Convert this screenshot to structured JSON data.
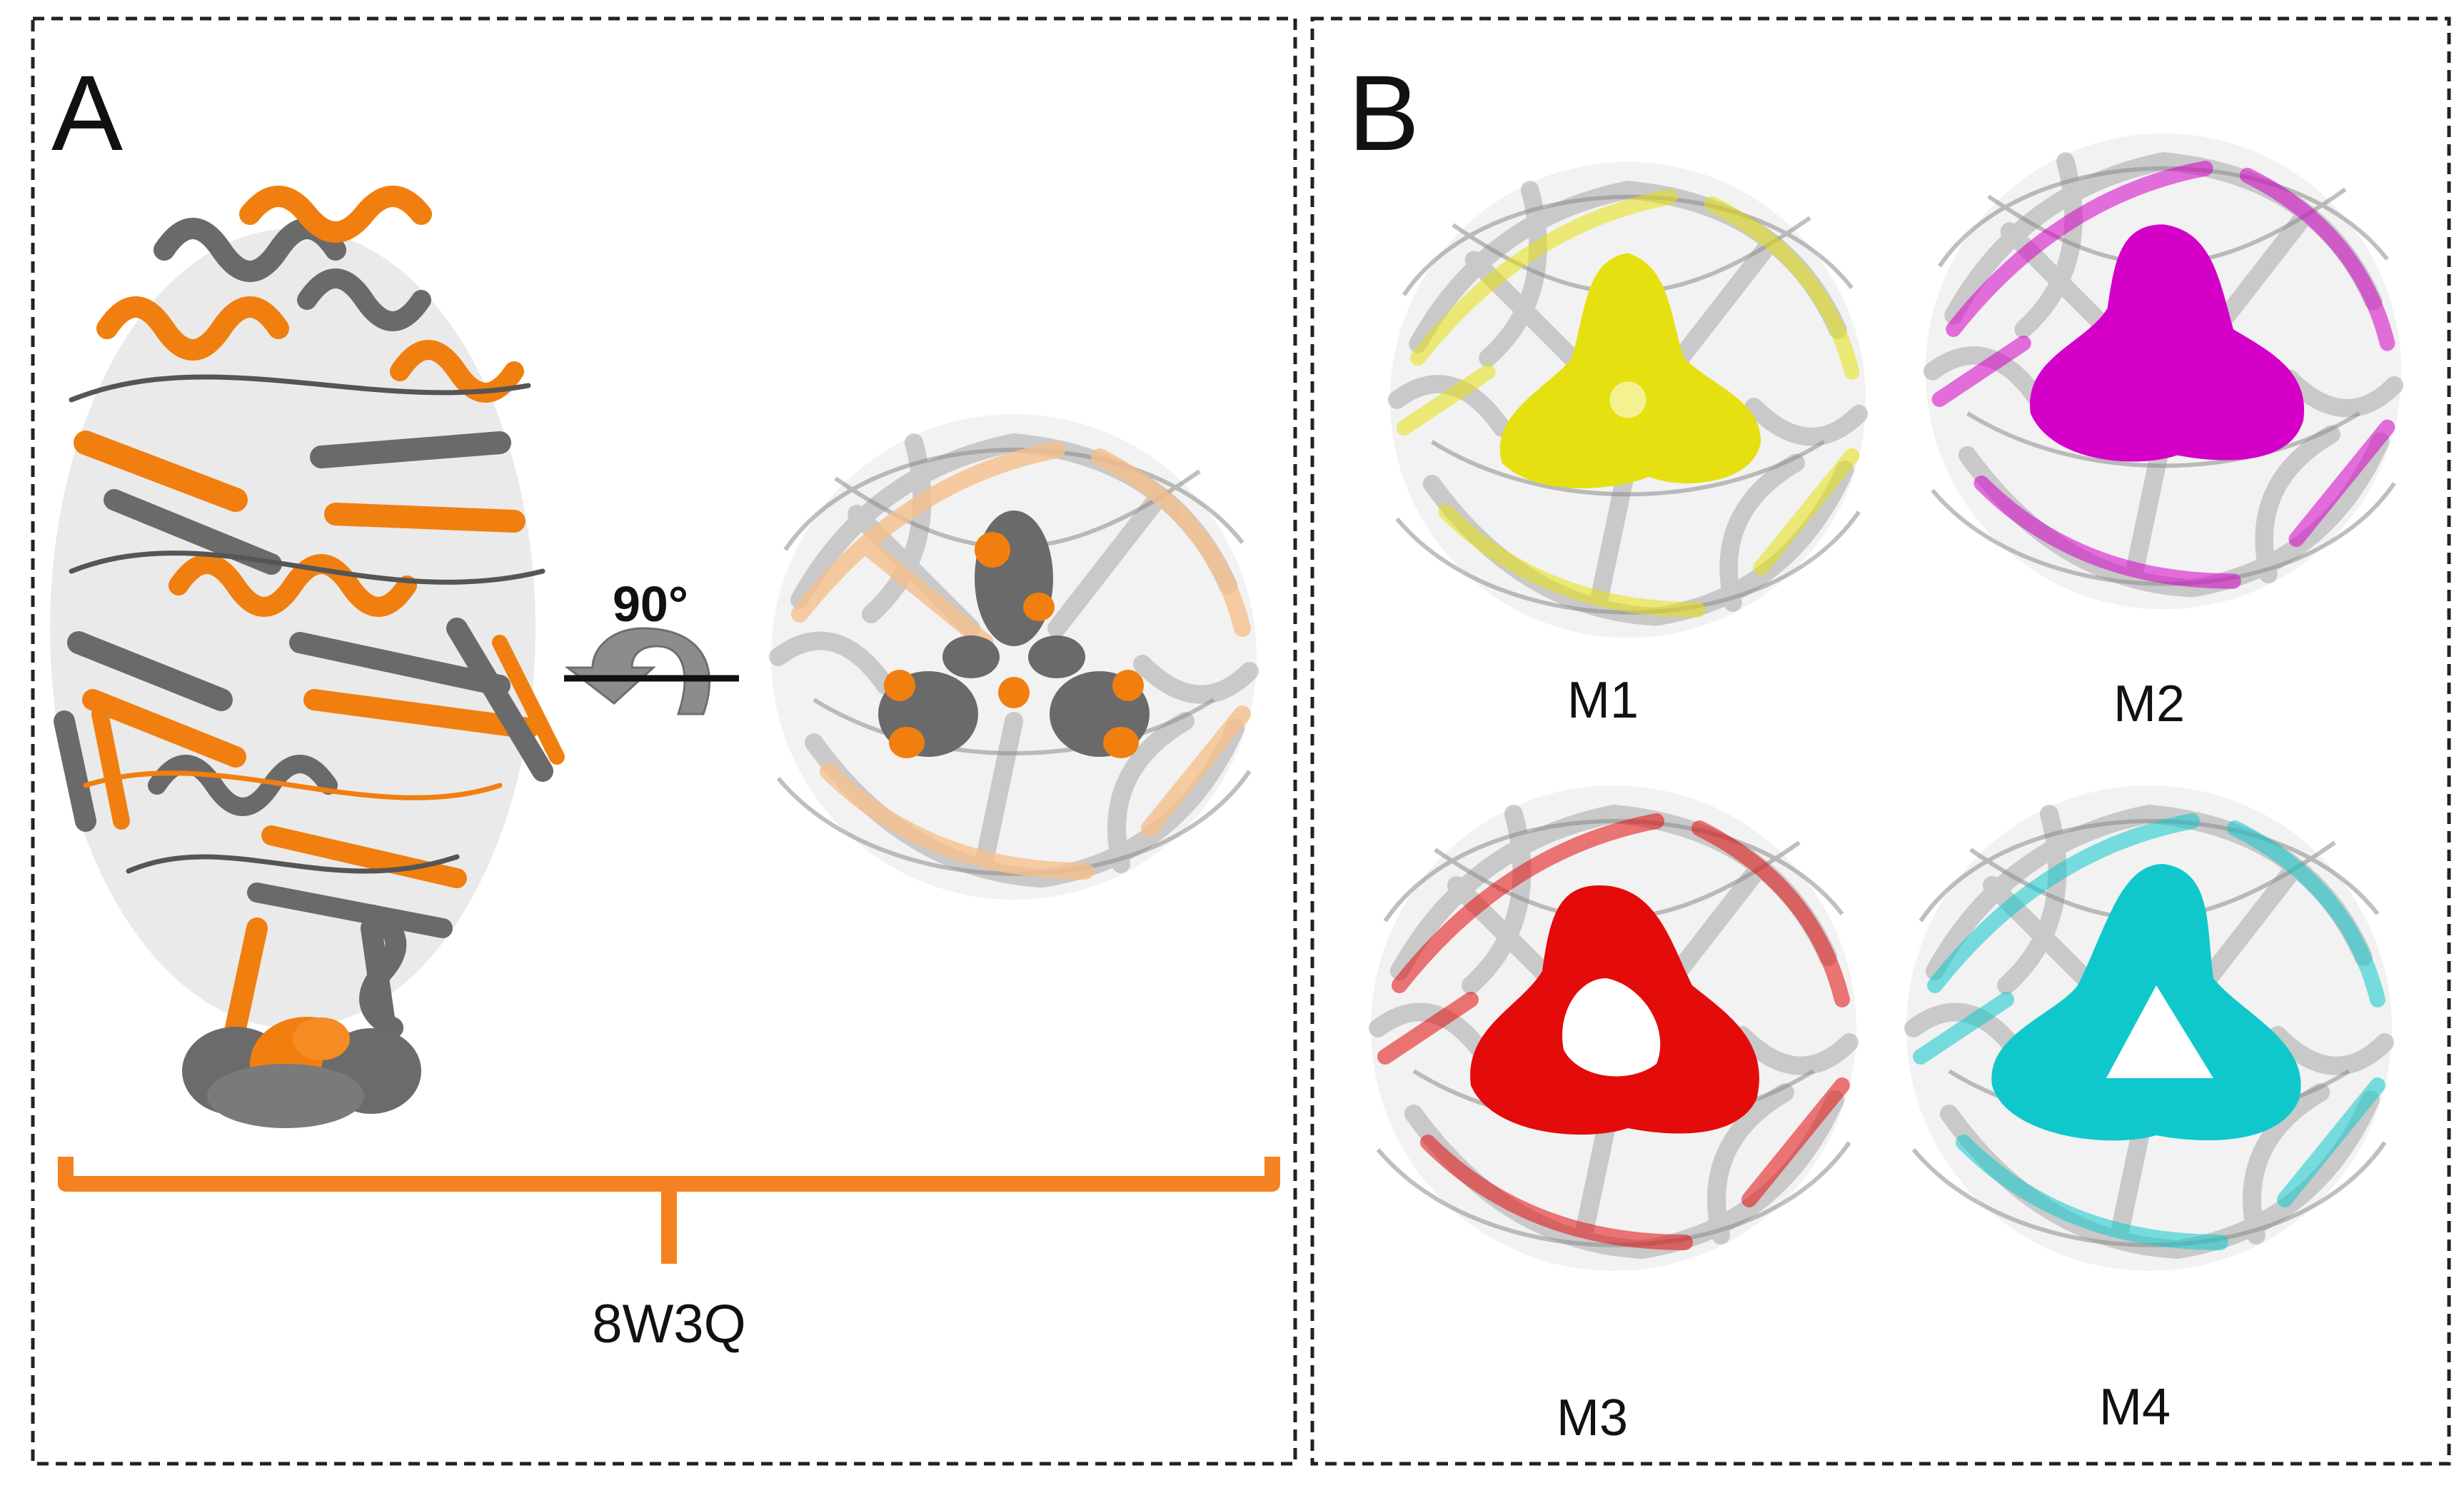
{
  "panel_a": {
    "letter": "A",
    "rotation_label": "90°",
    "structure_label": "8W3Q",
    "colors": {
      "primary": "#f07f10",
      "secondary": "#666666",
      "bracket": "#f58220"
    }
  },
  "panel_b": {
    "letter": "B",
    "models": [
      {
        "label": "M1",
        "color": "#e6e010"
      },
      {
        "label": "M2",
        "color": "#d400c8"
      },
      {
        "label": "M3",
        "color": "#e40b0b"
      },
      {
        "label": "M4",
        "color": "#10c8cc"
      }
    ]
  }
}
